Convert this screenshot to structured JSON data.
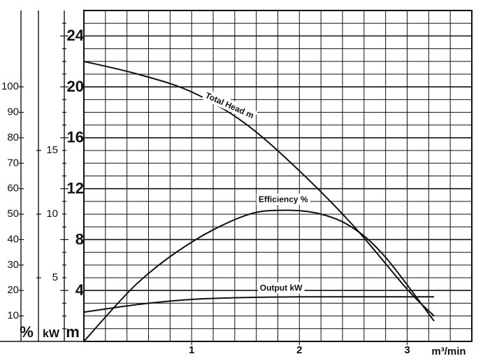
{
  "chart_data": {
    "type": "line",
    "title": "",
    "x_unit": "m³/min",
    "xlim": [
      0,
      3.6
    ],
    "x_ticks": [
      1,
      2,
      3
    ],
    "grid": true,
    "axes": {
      "head": {
        "unit": "m",
        "range": [
          0,
          26
        ],
        "ticks": [
          "24",
          "20",
          "16",
          "12",
          "8",
          "4"
        ]
      },
      "output": {
        "unit": "kW",
        "range": [
          0,
          26
        ],
        "ticks": [
          "15",
          "10",
          "5"
        ]
      },
      "efficiency": {
        "unit": "%",
        "range": [
          0,
          130
        ],
        "ticks": [
          "100",
          "90",
          "80",
          "70",
          "60",
          "50",
          "40",
          "30",
          "20",
          "10"
        ]
      }
    },
    "series": [
      {
        "name": "Total Head m",
        "axis": "head",
        "label": "Total Head m",
        "x": [
          0,
          0.5,
          1.0,
          1.5,
          2.0,
          2.5,
          3.0,
          3.25
        ],
        "y": [
          22,
          21.0,
          19.6,
          17.1,
          13.4,
          9.1,
          4.1,
          2.0
        ]
      },
      {
        "name": "Efficiency %",
        "axis": "head",
        "label": "Efficiency %",
        "x": [
          0,
          0.5,
          1.0,
          1.5,
          1.85,
          2.2,
          2.5,
          2.8,
          3.25
        ],
        "y": [
          0,
          4.6,
          7.8,
          9.9,
          10.3,
          10.0,
          8.9,
          6.6,
          1.6
        ]
      },
      {
        "name": "Output kW",
        "axis": "head",
        "label": "Output kW",
        "x": [
          0,
          0.5,
          1.0,
          1.5,
          2.0,
          2.5,
          3.0,
          3.25
        ],
        "y": [
          2.3,
          2.9,
          3.3,
          3.45,
          3.5,
          3.5,
          3.5,
          3.5
        ]
      }
    ]
  }
}
